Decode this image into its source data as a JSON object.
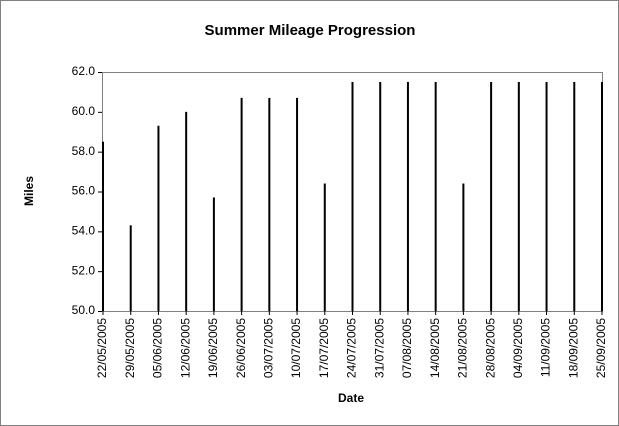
{
  "chart_data": {
    "type": "bar",
    "title": "Summer Mileage Progression",
    "x_label": "Date",
    "y_label": "Miles",
    "categories": [
      "22/05/2005",
      "29/05/2005",
      "05/06/2005",
      "12/06/2005",
      "19/06/2005",
      "26/06/2005",
      "03/07/2005",
      "10/07/2005",
      "17/07/2005",
      "24/07/2005",
      "31/07/2005",
      "07/08/2005",
      "14/08/2005",
      "21/08/2005",
      "28/08/2005",
      "04/09/2005",
      "11/09/2005",
      "18/09/2005",
      "25/09/2005"
    ],
    "values": [
      58.5,
      54.3,
      59.3,
      60.0,
      55.7,
      60.7,
      60.7,
      60.7,
      56.4,
      61.5,
      61.5,
      61.5,
      61.5,
      56.4,
      61.5,
      61.5,
      61.5,
      61.5,
      61.5
    ],
    "color": "#000000",
    "ylim": [
      50,
      62
    ],
    "yticks": [
      {
        "value": 50,
        "label": "50.0"
      },
      {
        "value": 52,
        "label": "52.0"
      },
      {
        "value": 54,
        "label": "54.0"
      },
      {
        "value": 56,
        "label": "56.0"
      },
      {
        "value": 58,
        "label": "58.0"
      },
      {
        "value": 60,
        "label": "60.0"
      },
      {
        "value": 62,
        "label": "62.0"
      }
    ]
  }
}
